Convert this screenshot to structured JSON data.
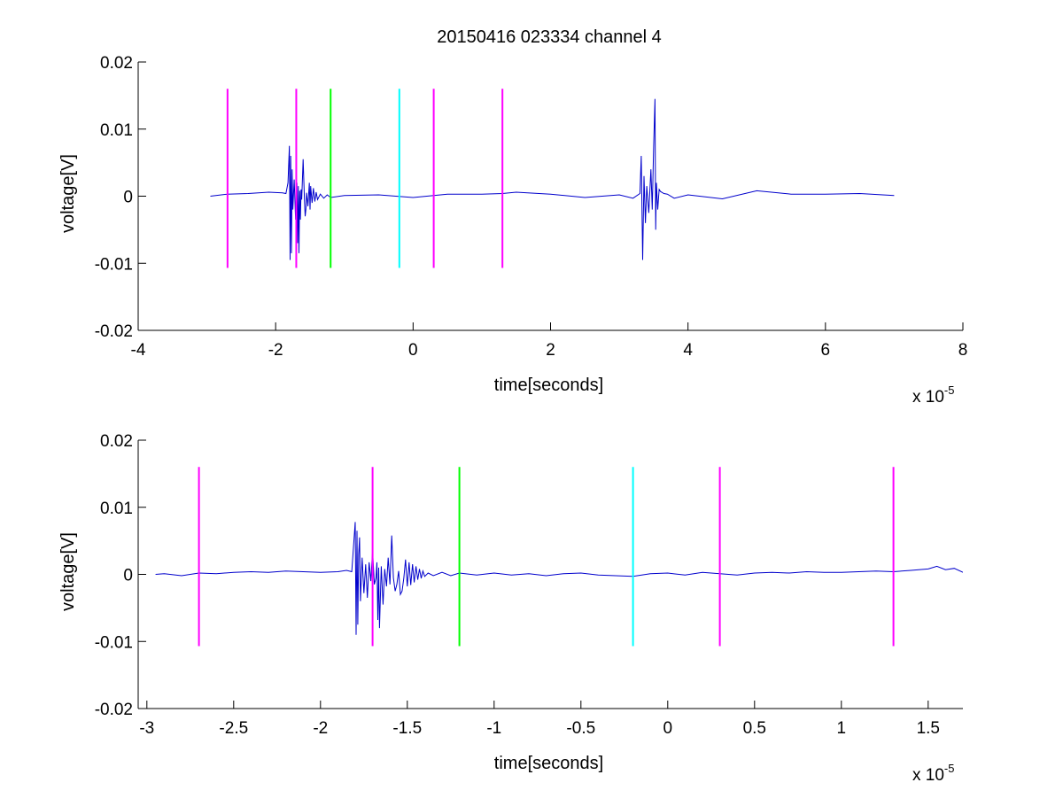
{
  "figure": {
    "title": "20150416 023334 channel 4"
  },
  "chart_data": [
    {
      "type": "line",
      "xlabel": "time[seconds]",
      "ylabel": "voltage[V]",
      "x_multiplier": {
        "base": "x 10",
        "exponent": "-5"
      },
      "xlim": [
        -4,
        8
      ],
      "ylim": [
        -0.02,
        0.02
      ],
      "xticks": [
        -4,
        -2,
        0,
        2,
        4,
        6,
        8
      ],
      "xtick_labels": [
        "-4",
        "-2",
        "0",
        "2",
        "4",
        "6",
        "8"
      ],
      "yticks": [
        -0.02,
        -0.01,
        0,
        0.01,
        0.02
      ],
      "ytick_labels": [
        "-0.02",
        "-0.01",
        "0",
        "0.01",
        "0.02"
      ],
      "markers": [
        {
          "x": -2.7,
          "color": "#ff00ff",
          "ymin": -0.0107,
          "ymax": 0.016
        },
        {
          "x": -1.7,
          "color": "#ff00ff",
          "ymin": -0.0107,
          "ymax": 0.016
        },
        {
          "x": -1.2,
          "color": "#00ff00",
          "ymin": -0.0107,
          "ymax": 0.016
        },
        {
          "x": -0.2,
          "color": "#00ffff",
          "ymin": -0.0107,
          "ymax": 0.016
        },
        {
          "x": 0.3,
          "color": "#ff00ff",
          "ymin": -0.0107,
          "ymax": 0.016
        },
        {
          "x": 1.3,
          "color": "#ff00ff",
          "ymin": -0.0107,
          "ymax": 0.016
        }
      ],
      "series": [
        {
          "color": "#0000cc",
          "x": [
            -2.95,
            -2.7,
            -2.4,
            -2.1,
            -1.9,
            -1.85,
            -1.82,
            -1.8,
            -1.79,
            -1.78,
            -1.77,
            -1.76,
            -1.75,
            -1.73,
            -1.71,
            -1.7,
            -1.69,
            -1.68,
            -1.67,
            -1.66,
            -1.65,
            -1.64,
            -1.63,
            -1.62,
            -1.6,
            -1.58,
            -1.57,
            -1.56,
            -1.55,
            -1.53,
            -1.51,
            -1.5,
            -1.49,
            -1.47,
            -1.45,
            -1.43,
            -1.41,
            -1.39,
            -1.35,
            -1.3,
            -1.25,
            -1.2,
            -1.0,
            -0.5,
            0.0,
            0.5,
            1.0,
            1.3,
            1.5,
            2.0,
            2.5,
            3.0,
            3.2,
            3.3,
            3.32,
            3.34,
            3.36,
            3.38,
            3.4,
            3.43,
            3.46,
            3.48,
            3.5,
            3.52,
            3.53,
            3.54,
            3.56,
            3.58,
            3.6,
            3.65,
            3.7,
            3.8,
            4.0,
            4.5,
            5.0,
            5.5,
            6.0,
            6.5,
            7.0
          ],
          "y": [
            0.0,
            0.0003,
            0.0004,
            0.0006,
            0.0005,
            0.0004,
            0.002,
            0.0075,
            -0.0095,
            0.006,
            -0.0085,
            0.004,
            -0.002,
            0.0025,
            -0.0035,
            0.0002,
            0.002,
            -0.007,
            0.0015,
            -0.0085,
            0.0008,
            -0.0035,
            0.001,
            -0.0005,
            0.0055,
            -0.001,
            -0.003,
            -0.002,
            0.0005,
            -0.0015,
            0.002,
            -0.002,
            0.0015,
            -0.001,
            0.0012,
            -0.0008,
            0.0006,
            -0.0005,
            0.0003,
            -0.0003,
            0.0002,
            -0.0002,
            0.0001,
            0.0002,
            -0.0002,
            0.0003,
            0.0003,
            0.0004,
            0.0006,
            0.0003,
            -0.0002,
            0.0002,
            -0.0003,
            0.0004,
            0.006,
            -0.0095,
            0.003,
            -0.004,
            0.0015,
            -0.0025,
            0.004,
            -0.002,
            0.0075,
            0.0145,
            -0.005,
            0.002,
            -0.002,
            0.001,
            0.0007,
            0.0004,
            0.0003,
            -0.0003,
            0.0002,
            -0.0004,
            0.0008,
            0.0003,
            0.0003,
            0.0004,
            0.0001
          ]
        }
      ]
    },
    {
      "type": "line",
      "xlabel": "time[seconds]",
      "ylabel": "voltage[V]",
      "x_multiplier": {
        "base": "x 10",
        "exponent": "-5"
      },
      "xlim": [
        -3.05,
        1.7
      ],
      "ylim": [
        -0.02,
        0.02
      ],
      "xticks": [
        -3,
        -2.5,
        -2,
        -1.5,
        -1,
        -0.5,
        0,
        0.5,
        1,
        1.5
      ],
      "xtick_labels": [
        "-3",
        "-2.5",
        "-2",
        "-1.5",
        "-1",
        "-0.5",
        "0",
        "0.5",
        "1",
        "1.5"
      ],
      "yticks": [
        -0.02,
        -0.01,
        0,
        0.01,
        0.02
      ],
      "ytick_labels": [
        "-0.02",
        "-0.01",
        "0",
        "0.01",
        "0.02"
      ],
      "markers": [
        {
          "x": -2.7,
          "color": "#ff00ff",
          "ymin": -0.0107,
          "ymax": 0.016
        },
        {
          "x": -1.7,
          "color": "#ff00ff",
          "ymin": -0.0107,
          "ymax": 0.016
        },
        {
          "x": -1.2,
          "color": "#00ff00",
          "ymin": -0.0107,
          "ymax": 0.016
        },
        {
          "x": -0.2,
          "color": "#00ffff",
          "ymin": -0.0107,
          "ymax": 0.016
        },
        {
          "x": 0.3,
          "color": "#ff00ff",
          "ymin": -0.0107,
          "ymax": 0.016
        },
        {
          "x": 1.3,
          "color": "#ff00ff",
          "ymin": -0.0107,
          "ymax": 0.016
        }
      ],
      "series": [
        {
          "color": "#0000cc",
          "x": [
            -2.95,
            -2.9,
            -2.8,
            -2.7,
            -2.6,
            -2.5,
            -2.4,
            -2.3,
            -2.2,
            -2.1,
            -2.0,
            -1.9,
            -1.85,
            -1.82,
            -1.8,
            -1.795,
            -1.79,
            -1.785,
            -1.78,
            -1.775,
            -1.77,
            -1.76,
            -1.75,
            -1.74,
            -1.73,
            -1.72,
            -1.71,
            -1.7,
            -1.69,
            -1.68,
            -1.675,
            -1.67,
            -1.665,
            -1.66,
            -1.65,
            -1.64,
            -1.63,
            -1.62,
            -1.61,
            -1.6,
            -1.59,
            -1.58,
            -1.57,
            -1.56,
            -1.55,
            -1.54,
            -1.53,
            -1.52,
            -1.51,
            -1.5,
            -1.49,
            -1.48,
            -1.47,
            -1.46,
            -1.45,
            -1.44,
            -1.43,
            -1.42,
            -1.41,
            -1.4,
            -1.38,
            -1.35,
            -1.3,
            -1.25,
            -1.2,
            -1.1,
            -1.0,
            -0.9,
            -0.8,
            -0.7,
            -0.6,
            -0.5,
            -0.4,
            -0.3,
            -0.2,
            -0.1,
            0.0,
            0.1,
            0.2,
            0.3,
            0.4,
            0.5,
            0.6,
            0.7,
            0.8,
            0.9,
            1.0,
            1.1,
            1.2,
            1.3,
            1.4,
            1.5,
            1.55,
            1.6,
            1.65,
            1.7
          ],
          "y": [
            0.0,
            0.0001,
            -0.0002,
            0.0002,
            0.0001,
            0.0003,
            0.0004,
            0.0003,
            0.0005,
            0.0004,
            0.0003,
            0.0004,
            0.0006,
            0.0004,
            0.0078,
            -0.009,
            0.0065,
            -0.0075,
            0.003,
            0.0055,
            -0.004,
            0.0025,
            -0.0028,
            0.0015,
            -0.0035,
            0.0018,
            -0.001,
            0.0035,
            -0.0015,
            -0.0005,
            0.0018,
            -0.0068,
            0.001,
            -0.008,
            0.0012,
            -0.0045,
            0.0008,
            -0.0018,
            0.0025,
            -0.0015,
            0.0058,
            -0.0005,
            -0.0025,
            -0.0015,
            0.0005,
            -0.003,
            -0.0025,
            -0.0005,
            0.0022,
            -0.0018,
            0.0018,
            -0.0016,
            0.0015,
            -0.0012,
            0.0012,
            -0.0008,
            0.0008,
            -0.0006,
            0.0005,
            -0.0003,
            0.0002,
            -0.0002,
            0.0003,
            -0.0002,
            0.0002,
            -0.0001,
            0.0002,
            -0.0001,
            0.0001,
            -0.0002,
            0.0001,
            0.0002,
            -0.0001,
            -0.0002,
            -0.0003,
            0.0001,
            0.0002,
            -0.0001,
            0.0003,
            0.0001,
            -0.0001,
            0.0002,
            0.0003,
            0.0002,
            0.0004,
            0.0003,
            0.0003,
            0.0004,
            0.0005,
            0.0004,
            0.0006,
            0.0008,
            0.0012,
            0.0007,
            0.0009,
            0.0003
          ]
        }
      ]
    }
  ]
}
